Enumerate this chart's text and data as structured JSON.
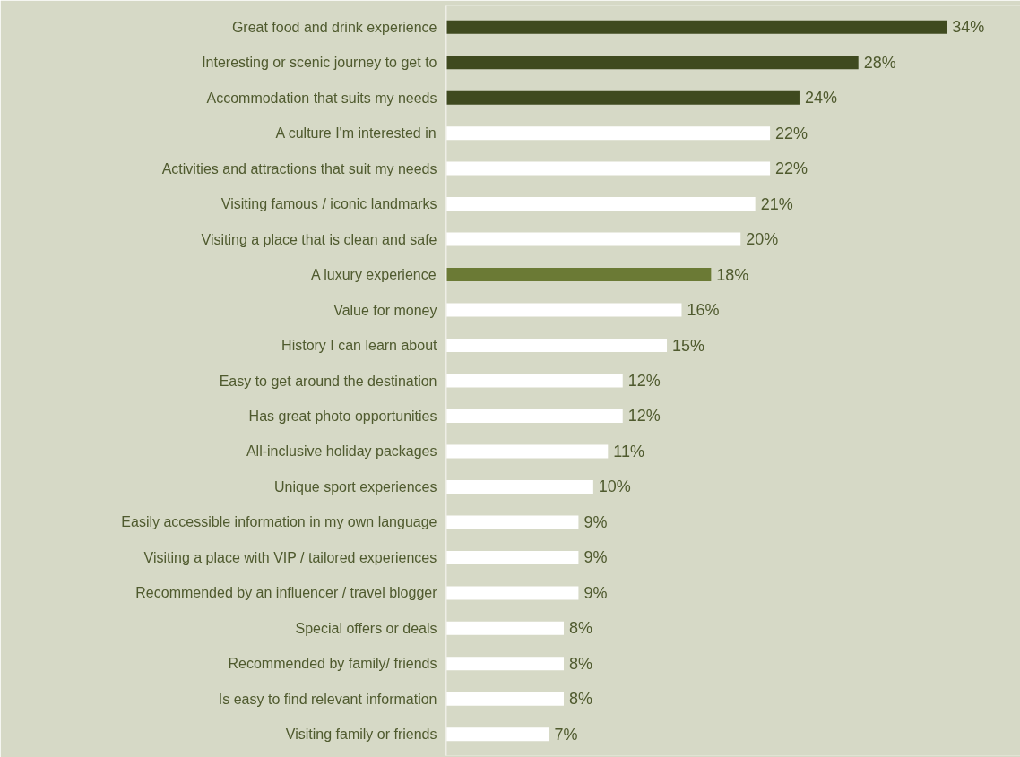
{
  "chart_data": {
    "type": "bar",
    "orientation": "horizontal",
    "categories": [
      "Great food and drink experience",
      "Interesting or scenic journey to get to",
      "Accommodation that suits my needs",
      "A culture I'm interested in",
      "Activities and attractions that suit my needs",
      "Visiting famous / iconic landmarks",
      "Visiting a place that is clean and safe",
      "A luxury experience",
      "Value for money",
      "History I can learn about",
      "Easy to get around the destination",
      "Has great photo opportunities",
      "All-inclusive holiday packages",
      "Unique sport experiences",
      "Easily accessible information in my own language",
      "Visiting a place with VIP / tailored experiences",
      "Recommended by an influencer / travel blogger",
      "Special offers or deals",
      "Recommended by family/ friends",
      "Is easy to find relevant information",
      "Visiting family or friends"
    ],
    "values": [
      34,
      28,
      24,
      22,
      22,
      21,
      20,
      18,
      16,
      15,
      12,
      12,
      11,
      10,
      9,
      9,
      9,
      8,
      8,
      8,
      7
    ],
    "value_labels": [
      "34%",
      "28%",
      "24%",
      "22%",
      "22%",
      "21%",
      "20%",
      "18%",
      "16%",
      "15%",
      "12%",
      "12%",
      "11%",
      "10%",
      "9%",
      "9%",
      "9%",
      "8%",
      "8%",
      "8%",
      "7%"
    ],
    "colors": [
      "#3f4a1f",
      "#3f4a1f",
      "#3f4a1f",
      "#ffffff",
      "#ffffff",
      "#ffffff",
      "#ffffff",
      "#6b7a35",
      "#ffffff",
      "#ffffff",
      "#ffffff",
      "#ffffff",
      "#ffffff",
      "#ffffff",
      "#ffffff",
      "#ffffff",
      "#ffffff",
      "#ffffff",
      "#ffffff",
      "#ffffff",
      "#ffffff"
    ],
    "xlim": [
      0,
      39
    ],
    "tick_labels": "y",
    "grid": false
  }
}
